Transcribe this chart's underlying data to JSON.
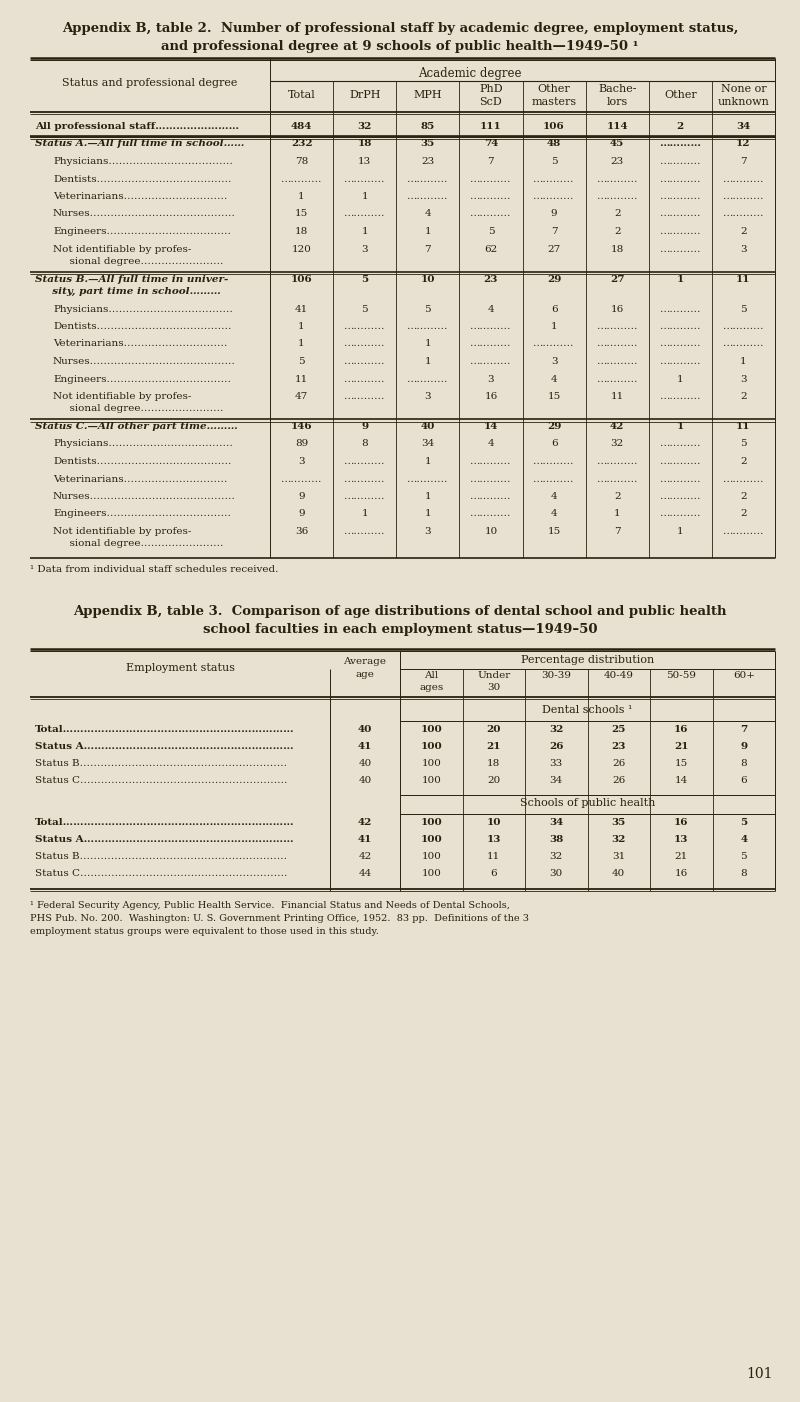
{
  "bg_color": "#e8e0d0",
  "text_color": "#2a2010",
  "table1_rows": [
    {
      "label": "All professional staff……………………",
      "indent": 0,
      "bold": true,
      "vals": [
        "484",
        "32",
        "85",
        "111",
        "106",
        "114",
        "2",
        "34"
      ],
      "dline_below": true
    },
    {
      "label": "Status A.—All full time in school……",
      "indent": 0,
      "bold": true,
      "italic_label": true,
      "vals": [
        "232",
        "18",
        "35",
        "74",
        "48",
        "45",
        "…………",
        "12"
      ],
      "dline_below": false
    },
    {
      "label": "Physicians………………………………",
      "indent": 1,
      "bold": false,
      "vals": [
        "78",
        "13",
        "23",
        "7",
        "5",
        "23",
        "…………",
        "7"
      ]
    },
    {
      "label": "Dentists…………………………………",
      "indent": 1,
      "bold": false,
      "vals": [
        "…………",
        "…………",
        "…………",
        "…………",
        "…………",
        "…………",
        "…………",
        "…………"
      ]
    },
    {
      "label": "Veterinarians…………………………",
      "indent": 1,
      "bold": false,
      "vals": [
        "1",
        "1",
        "…………",
        "…………",
        "…………",
        "…………",
        "…………",
        "…………"
      ]
    },
    {
      "label": "Nurses……………………………………",
      "indent": 1,
      "bold": false,
      "vals": [
        "15",
        "…………",
        "4",
        "…………",
        "9",
        "2",
        "…………",
        "…………"
      ]
    },
    {
      "label": "Engineers………………………………",
      "indent": 1,
      "bold": false,
      "vals": [
        "18",
        "1",
        "1",
        "5",
        "7",
        "2",
        "…………",
        "2"
      ]
    },
    {
      "label": "Not identifiable by profes-\n  sional degree……………………",
      "indent": 1,
      "bold": false,
      "vals": [
        "120",
        "3",
        "7",
        "62",
        "27",
        "18",
        "…………",
        "3"
      ]
    },
    {
      "label": "Status B.—All full time in univer-\n  sity, part time in school………",
      "indent": 0,
      "bold": true,
      "italic_label": true,
      "vals": [
        "106",
        "5",
        "10",
        "23",
        "29",
        "27",
        "1",
        "11"
      ],
      "dline_below": false
    },
    {
      "label": "Physicians………………………………",
      "indent": 1,
      "bold": false,
      "vals": [
        "41",
        "5",
        "5",
        "4",
        "6",
        "16",
        "…………",
        "5"
      ]
    },
    {
      "label": "Dentists…………………………………",
      "indent": 1,
      "bold": false,
      "vals": [
        "1",
        "…………",
        "…………",
        "…………",
        "1",
        "…………",
        "…………",
        "…………"
      ]
    },
    {
      "label": "Veterinarians…………………………",
      "indent": 1,
      "bold": false,
      "vals": [
        "1",
        "…………",
        "1",
        "…………",
        "…………",
        "…………",
        "…………",
        "…………"
      ]
    },
    {
      "label": "Nurses……………………………………",
      "indent": 1,
      "bold": false,
      "vals": [
        "5",
        "…………",
        "1",
        "…………",
        "3",
        "…………",
        "…………",
        "1"
      ]
    },
    {
      "label": "Engineers………………………………",
      "indent": 1,
      "bold": false,
      "vals": [
        "11",
        "…………",
        "…………",
        "3",
        "4",
        "…………",
        "1",
        "3"
      ]
    },
    {
      "label": "Not identifiable by profes-\n  sional degree……………………",
      "indent": 1,
      "bold": false,
      "vals": [
        "47",
        "…………",
        "3",
        "16",
        "15",
        "11",
        "…………",
        "2"
      ]
    },
    {
      "label": "Status C.—All other part time………",
      "indent": 0,
      "bold": true,
      "italic_label": true,
      "vals": [
        "146",
        "9",
        "40",
        "14",
        "29",
        "42",
        "1",
        "11"
      ],
      "dline_below": false
    },
    {
      "label": "Physicians………………………………",
      "indent": 1,
      "bold": false,
      "vals": [
        "89",
        "8",
        "34",
        "4",
        "6",
        "32",
        "…………",
        "5"
      ]
    },
    {
      "label": "Dentists…………………………………",
      "indent": 1,
      "bold": false,
      "vals": [
        "3",
        "…………",
        "1",
        "…………",
        "…………",
        "…………",
        "…………",
        "2"
      ]
    },
    {
      "label": "Veterinarians…………………………",
      "indent": 1,
      "bold": false,
      "vals": [
        "…………",
        "…………",
        "…………",
        "…………",
        "…………",
        "…………",
        "…………",
        "…………"
      ]
    },
    {
      "label": "Nurses……………………………………",
      "indent": 1,
      "bold": false,
      "vals": [
        "9",
        "…………",
        "1",
        "…………",
        "4",
        "2",
        "…………",
        "2"
      ]
    },
    {
      "label": "Engineers………………………………",
      "indent": 1,
      "bold": false,
      "vals": [
        "9",
        "1",
        "1",
        "…………",
        "4",
        "1",
        "…………",
        "2"
      ]
    },
    {
      "label": "Not identifiable by profes-\n  sional degree……………………",
      "indent": 1,
      "bold": false,
      "vals": [
        "36",
        "…………",
        "3",
        "10",
        "15",
        "7",
        "1",
        "…………"
      ]
    }
  ],
  "table2_rows_dental": [
    {
      "label": "Total…………………………………………………………",
      "bold": true,
      "avg": "40",
      "vals": [
        "100",
        "20",
        "32",
        "25",
        "16",
        "7"
      ]
    },
    {
      "label": "Status A……………………………………………………",
      "bold": true,
      "avg": "41",
      "vals": [
        "100",
        "21",
        "26",
        "23",
        "21",
        "9"
      ]
    },
    {
      "label": "Status B……………………………………………………",
      "bold": false,
      "avg": "40",
      "vals": [
        "100",
        "18",
        "33",
        "26",
        "15",
        "8"
      ]
    },
    {
      "label": "Status C……………………………………………………",
      "bold": false,
      "avg": "40",
      "vals": [
        "100",
        "20",
        "34",
        "26",
        "14",
        "6"
      ]
    }
  ],
  "table2_rows_public": [
    {
      "label": "Total…………………………………………………………",
      "bold": true,
      "avg": "42",
      "vals": [
        "100",
        "10",
        "34",
        "35",
        "16",
        "5"
      ]
    },
    {
      "label": "Status A……………………………………………………",
      "bold": true,
      "avg": "41",
      "vals": [
        "100",
        "13",
        "38",
        "32",
        "13",
        "4"
      ]
    },
    {
      "label": "Status B……………………………………………………",
      "bold": false,
      "avg": "42",
      "vals": [
        "100",
        "11",
        "32",
        "31",
        "21",
        "5"
      ]
    },
    {
      "label": "Status C……………………………………………………",
      "bold": false,
      "avg": "44",
      "vals": [
        "100",
        "6",
        "30",
        "40",
        "16",
        "8"
      ]
    }
  ],
  "footnote2_lines": [
    "¹ Federal Security Agency, Public Health Service.  Financial Status and Needs of Dental Schools,",
    "PHS Pub. No. 200.  Washington: U. S. Government Printing Office, 1952.  83 pp.  Definitions of the 3",
    "employment status groups were equivalent to those used in this study."
  ]
}
